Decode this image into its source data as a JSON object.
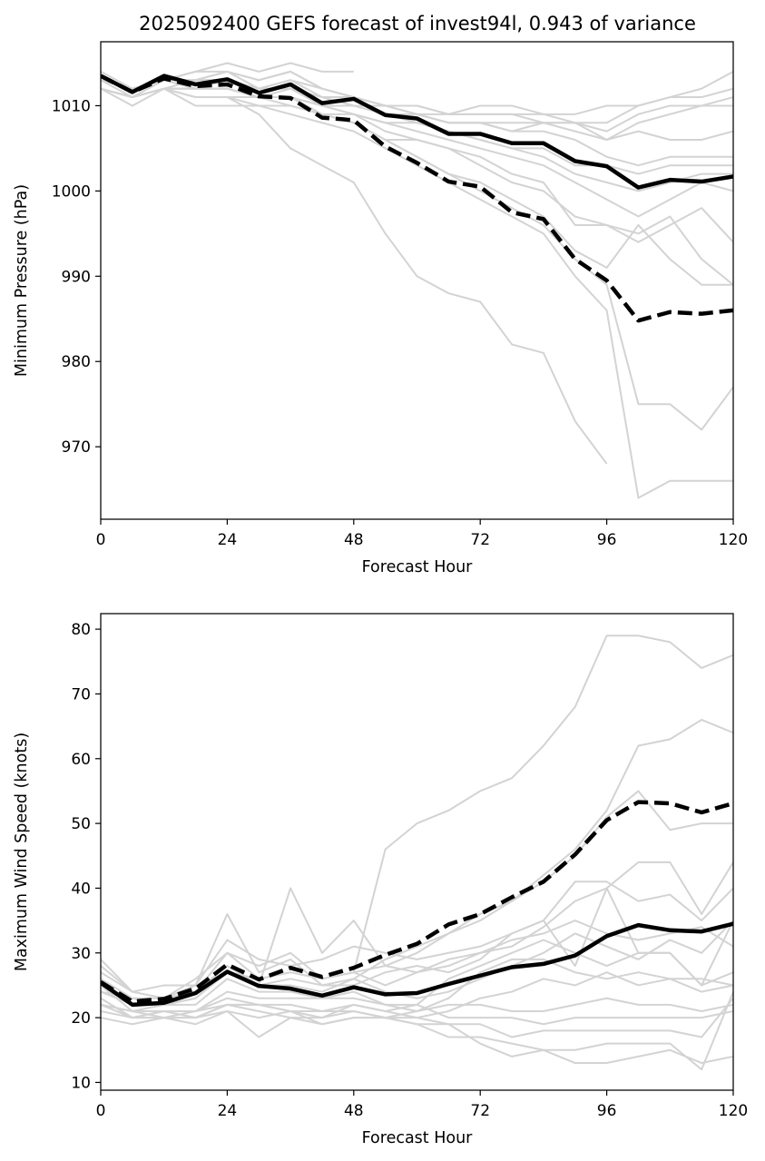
{
  "colors": {
    "member": "#d3d3d3",
    "mean": "#000000",
    "background": "#ffffff"
  },
  "chart_data": [
    {
      "type": "line",
      "title": "2025092400 GEFS forecast of invest94l, 0.943 of variance",
      "xlabel": "Forecast Hour",
      "ylabel": "Minimum Pressure (hPa)",
      "xlim": [
        0,
        120
      ],
      "ylim": [
        961.5,
        1017.5
      ],
      "xticks": [
        0,
        24,
        48,
        72,
        96,
        120
      ],
      "yticks": [
        970,
        980,
        990,
        1000,
        1010
      ],
      "grid": false,
      "legend": "none",
      "x": [
        0,
        6,
        12,
        18,
        24,
        30,
        36,
        42,
        48,
        54,
        60,
        66,
        72,
        78,
        84,
        90,
        96,
        102,
        108,
        114,
        120
      ],
      "members": [
        [
          1014,
          1012,
          1013,
          1014,
          1015,
          1014,
          1015,
          1014,
          1014
        ],
        [
          1013,
          1012,
          1013,
          1013,
          1014,
          1013,
          1014,
          1012,
          1011,
          1010,
          1009,
          1009,
          1010,
          1010,
          1009,
          1009,
          1010,
          1010,
          1011,
          1012,
          1014
        ],
        [
          1013,
          1012,
          1013,
          1014,
          1014,
          1013,
          1014,
          1012,
          1011,
          1010,
          1010,
          1009,
          1009,
          1009,
          1009,
          1008,
          1008,
          1010,
          1011,
          1011,
          1012
        ],
        [
          1012,
          1011,
          1013,
          1013,
          1014,
          1012,
          1013,
          1011,
          1011,
          1010,
          1009,
          1008,
          1008,
          1008,
          1008,
          1008,
          1007,
          1009,
          1010,
          1010,
          1011
        ],
        [
          1013,
          1012,
          1013,
          1013,
          1013,
          1012,
          1013,
          1012,
          1011,
          1010,
          1010,
          1009,
          1009,
          1009,
          1008,
          1008,
          1006,
          1008,
          1009,
          1010,
          1010
        ],
        [
          1012,
          1011,
          1012,
          1013,
          1013,
          1012,
          1012,
          1011,
          1010,
          1010,
          1009,
          1008,
          1008,
          1007,
          1008,
          1007,
          1006,
          1007,
          1006,
          1006,
          1007
        ],
        [
          1013,
          1012,
          1013,
          1012,
          1013,
          1012,
          1012,
          1011,
          1010,
          1009,
          1009,
          1008,
          1008,
          1007,
          1007,
          1006,
          1004,
          1003,
          1004,
          1004,
          1004
        ],
        [
          1012,
          1011,
          1012,
          1012,
          1012,
          1011,
          1012,
          1010,
          1010,
          1009,
          1008,
          1007,
          1006,
          1005,
          1005,
          1003,
          1003,
          1002,
          1003,
          1003,
          1003
        ],
        [
          1013,
          1012,
          1013,
          1012,
          1012,
          1011,
          1011,
          1010,
          1009,
          1008,
          1008,
          1007,
          1006,
          1005,
          1004,
          1002,
          1001,
          1000,
          1001,
          1002,
          1002
        ],
        [
          1012,
          1011,
          1012,
          1012,
          1012,
          1011,
          1011,
          1010,
          1009,
          1008,
          1007,
          1006,
          1005,
          1004,
          1003,
          1001,
          999,
          997,
          999,
          1001,
          1000
        ],
        [
          1012,
          1011,
          1012,
          1012,
          1012,
          1011,
          1011,
          1009,
          1009,
          1007,
          1006,
          1005,
          1003,
          1001,
          1000,
          997,
          996,
          994,
          996,
          998,
          994
        ],
        [
          1013,
          1011,
          1012,
          1012,
          1012,
          1011,
          1011,
          1009,
          1008,
          1006,
          1006,
          1005,
          1004,
          1002,
          1001,
          996,
          996,
          995,
          997,
          992,
          989
        ],
        [
          1012,
          1011,
          1012,
          1011,
          1011,
          1011,
          1010,
          1009,
          1008,
          1006,
          1004,
          1002,
          1001,
          999,
          997,
          993,
          991,
          996,
          992,
          989,
          989
        ],
        [
          1012,
          1011,
          1012,
          1011,
          1011,
          1010,
          1010,
          1009,
          1008,
          1006,
          1004,
          1002,
          1000,
          998,
          996,
          992,
          989,
          975,
          975,
          972,
          977
        ],
        [
          1012,
          1010,
          1012,
          1010,
          1010,
          1010,
          1009,
          1008,
          1007,
          1005,
          1003,
          1001,
          999,
          997,
          995,
          990,
          986,
          964,
          966,
          966,
          966
        ],
        [
          1012,
          1011,
          1012,
          1011,
          1011,
          1009,
          1005,
          1003,
          1001,
          995,
          990,
          988,
          987,
          982,
          981,
          973,
          968
        ]
      ],
      "series": [
        {
          "style": "solid",
          "values": [
            1013.5,
            1011.6,
            1013.5,
            1012.5,
            1013.1,
            1011.5,
            1012.5,
            1010.3,
            1010.8,
            1008.9,
            1008.5,
            1006.7,
            1006.7,
            1005.6,
            1005.6,
            1003.5,
            1002.9,
            1000.4,
            1001.3,
            1001.1,
            1001.7
          ]
        },
        {
          "style": "dashed",
          "values": [
            1013.5,
            1011.6,
            1013.2,
            1012.3,
            1012.5,
            1011.1,
            1010.9,
            1008.6,
            1008.3,
            1005.2,
            1003.3,
            1001.1,
            1000.5,
            997.5,
            996.7,
            992.0,
            989.5,
            984.8,
            985.8,
            985.6,
            986.0
          ]
        }
      ]
    },
    {
      "type": "line",
      "title": "",
      "xlabel": "Forecast Hour",
      "ylabel": "Maximum Wind Speed (knots)",
      "xlim": [
        0,
        120
      ],
      "ylim": [
        8.8,
        82.4
      ],
      "xticks": [
        0,
        24,
        48,
        72,
        96,
        120
      ],
      "yticks": [
        10,
        20,
        30,
        40,
        50,
        60,
        70,
        80
      ],
      "grid": false,
      "legend": "none",
      "x": [
        0,
        6,
        12,
        18,
        24,
        30,
        36,
        42,
        48,
        54,
        60,
        66,
        72,
        78,
        84,
        90,
        96,
        102,
        108,
        114,
        120
      ],
      "members": [
        [
          25,
          22,
          22,
          23,
          27,
          26,
          27,
          26,
          27,
          46,
          50,
          52,
          55,
          57,
          62,
          68,
          79,
          79,
          78,
          74,
          76
        ],
        [
          24,
          23,
          23,
          24,
          28,
          25,
          26,
          25,
          26,
          29,
          31,
          33,
          35,
          38,
          42,
          46,
          52,
          62,
          63,
          66,
          64
        ],
        [
          26,
          23,
          22,
          24,
          30,
          26,
          27,
          26,
          27,
          28,
          30,
          33,
          36,
          38,
          41,
          45,
          51,
          55,
          49,
          50,
          50
        ],
        [
          25,
          22,
          22,
          24,
          28,
          25,
          40,
          30,
          35,
          28,
          27,
          29,
          30,
          31,
          34,
          38,
          40,
          44,
          44,
          36,
          44
        ],
        [
          28,
          24,
          23,
          25,
          36,
          27,
          29,
          25,
          25,
          27,
          28,
          27,
          29,
          33,
          35,
          41,
          41,
          38,
          39,
          35,
          40
        ],
        [
          27,
          24,
          23,
          26,
          30,
          28,
          30,
          26,
          27,
          25,
          27,
          28,
          30,
          32,
          33,
          35,
          33,
          32,
          33,
          34,
          31
        ],
        [
          24,
          22,
          22,
          23,
          27,
          25,
          25,
          24,
          26,
          24,
          23,
          24,
          26,
          28,
          30,
          33,
          31,
          29,
          32,
          30,
          35
        ],
        [
          25,
          21,
          22,
          22,
          26,
          24,
          24,
          23,
          24,
          22,
          22,
          26,
          28,
          30,
          32,
          30,
          28,
          30,
          30,
          25,
          27
        ],
        [
          23,
          20,
          21,
          21,
          24,
          23,
          23,
          23,
          23,
          22,
          21,
          23,
          27,
          29,
          29,
          27,
          26,
          27,
          26,
          26,
          25
        ],
        [
          22,
          21,
          21,
          21,
          23,
          22,
          22,
          21,
          22,
          21,
          20,
          21,
          23,
          24,
          26,
          25,
          27,
          25,
          26,
          24,
          25
        ],
        [
          21,
          20,
          20,
          21,
          22,
          22,
          21,
          21,
          21,
          20,
          21,
          22,
          22,
          21,
          21,
          22,
          23,
          22,
          22,
          21,
          22
        ],
        [
          22,
          20,
          21,
          20,
          22,
          21,
          20,
          20,
          22,
          21,
          22,
          20,
          20,
          20,
          19,
          20,
          20,
          20,
          20,
          20,
          21
        ],
        [
          22,
          21,
          20,
          20,
          21,
          20,
          21,
          19,
          20,
          20,
          19,
          19,
          19,
          17,
          18,
          18,
          18,
          18,
          18,
          17,
          23
        ],
        [
          20,
          19,
          20,
          19,
          21,
          17,
          20,
          19,
          20,
          20,
          19,
          17,
          17,
          16,
          15,
          15,
          16,
          16,
          16,
          12,
          24
        ],
        [
          23,
          20,
          20,
          20,
          22,
          22,
          21,
          20,
          21,
          20,
          20,
          19,
          16,
          14,
          15,
          13,
          13,
          14,
          15,
          13,
          14
        ],
        [
          29,
          24,
          25,
          25,
          32,
          29,
          28,
          29,
          31,
          30,
          29,
          30,
          31,
          33,
          35,
          28,
          40,
          30,
          30,
          25,
          35
        ]
      ],
      "series": [
        {
          "style": "solid",
          "values": [
            25.4,
            22.0,
            22.3,
            23.8,
            27.1,
            24.9,
            24.5,
            23.4,
            24.7,
            23.6,
            23.8,
            25.2,
            26.5,
            27.8,
            28.3,
            29.6,
            32.6,
            34.3,
            33.5,
            33.3,
            34.5
          ]
        },
        {
          "style": "dashed",
          "values": [
            25.5,
            22.5,
            22.9,
            24.5,
            28.2,
            25.9,
            27.7,
            26.3,
            27.7,
            29.7,
            31.4,
            34.4,
            36.0,
            38.6,
            41.0,
            45.2,
            50.5,
            53.3,
            53.1,
            51.7,
            53.1
          ]
        }
      ]
    }
  ]
}
